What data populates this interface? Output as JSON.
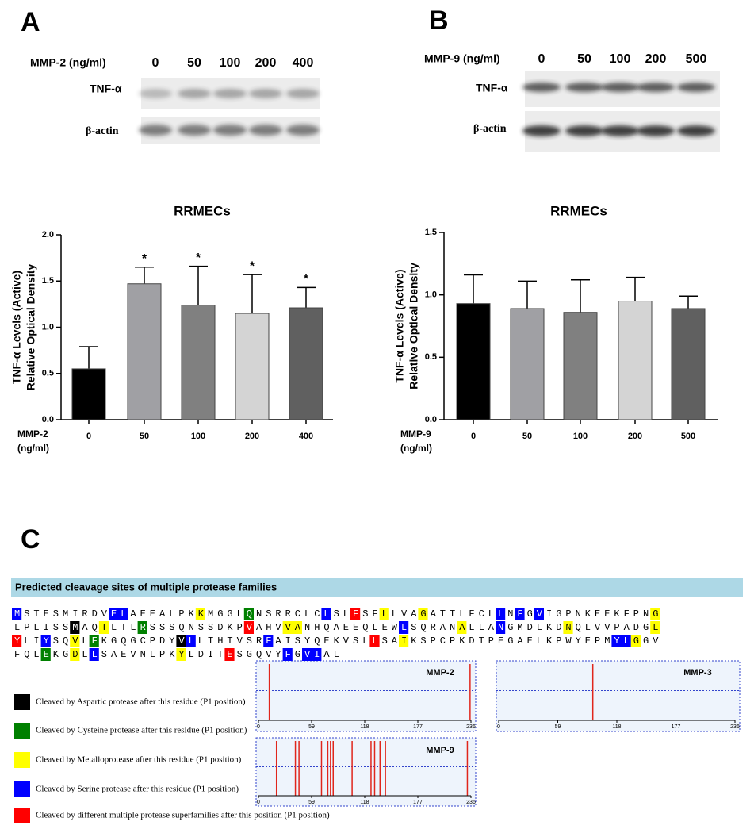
{
  "panels": {
    "a": "A",
    "b": "B",
    "c": "C"
  },
  "blots": [
    {
      "treatment": "MMP-2 (ng/ml)",
      "lanes": [
        "0",
        "50",
        "100",
        "200",
        "400"
      ],
      "rows": [
        "TNF-α",
        "β-actin"
      ]
    },
    {
      "treatment": "MMP-9 (ng/ml)",
      "lanes": [
        "0",
        "50",
        "100",
        "200",
        "500"
      ],
      "rows": [
        "TNF-α",
        "β-actin"
      ]
    }
  ],
  "chart_data": [
    {
      "type": "bar",
      "title": "RRMECs",
      "y_label": [
        "TNF-α Levels (Active)",
        "Relative Optical Density"
      ],
      "x_label": [
        "MMP-2",
        "(ng/ml)"
      ],
      "categories": [
        "0",
        "50",
        "100",
        "200",
        "400"
      ],
      "values": [
        0.55,
        1.47,
        1.24,
        1.15,
        1.21
      ],
      "errors": [
        0.24,
        0.18,
        0.42,
        0.42,
        0.22
      ],
      "significance": [
        null,
        "*",
        "*",
        "*",
        "*"
      ],
      "colors": [
        "#000000",
        "#a0a0a4",
        "#808080",
        "#d4d4d4",
        "#606060"
      ],
      "ylim": [
        0,
        2
      ],
      "yticks": [
        {
          "value": 0,
          "label": "0.0"
        },
        {
          "value": 0.5,
          "label": "0.5"
        },
        {
          "value": 1,
          "label": "1.0"
        },
        {
          "value": 1.5,
          "label": "1.5"
        },
        {
          "value": 2,
          "label": "2.0"
        }
      ]
    },
    {
      "type": "bar",
      "title": "RRMECs",
      "y_label": [
        "TNF-α Levels (Active)",
        "Relative Optical Density"
      ],
      "x_label": [
        "MMP-9",
        "(ng/ml)"
      ],
      "categories": [
        "0",
        "50",
        "100",
        "200",
        "500"
      ],
      "values": [
        0.93,
        0.89,
        0.86,
        0.95,
        0.89
      ],
      "errors": [
        0.23,
        0.22,
        0.26,
        0.19,
        0.1
      ],
      "colors": [
        "#000000",
        "#a0a0a4",
        "#808080",
        "#d4d4d4",
        "#606060"
      ],
      "ylim": [
        0,
        1.5
      ],
      "yticks": [
        {
          "value": 0,
          "label": "0.0"
        },
        {
          "value": 0.5,
          "label": "0.5"
        },
        {
          "value": 1,
          "label": "1.0"
        },
        {
          "value": 1.5,
          "label": "1.5"
        }
      ]
    },
    {
      "type": "rug",
      "title": "MMP-2",
      "x": [
        12,
        235
      ],
      "xlim": [
        0,
        236
      ],
      "xticks": [
        0,
        59,
        118,
        177,
        236
      ],
      "color": "#e0261c"
    },
    {
      "type": "rug",
      "title": "MMP-3",
      "x": [
        94
      ],
      "xlim": [
        0,
        236
      ],
      "xticks": [
        0,
        59,
        118,
        177,
        236
      ],
      "color": "#e0261c"
    },
    {
      "type": "rug",
      "title": "MMP-9",
      "x": [
        20,
        41,
        45,
        70,
        77,
        80,
        83,
        104,
        125,
        129,
        135,
        141,
        232
      ],
      "xlim": [
        0,
        236
      ],
      "xticks": [
        0,
        59,
        118,
        177,
        236
      ],
      "color": "#e0261c"
    }
  ],
  "cleavage": {
    "header": "Predicted cleavage sites of multiple protease families",
    "sequence": [
      [
        {
          "text": "M",
          "color": "#0000ff"
        },
        {
          "text": "STESMIRDV"
        },
        {
          "text": "EL",
          "color": "#0000ff"
        },
        {
          "text": "AEEALPK"
        },
        {
          "text": "K",
          "color": "#ffff00"
        },
        {
          "text": "MGGL"
        },
        {
          "text": "Q",
          "color": "#008000"
        },
        {
          "text": "NSRRCLC"
        },
        {
          "text": "L",
          "color": "#0000ff"
        },
        {
          "text": "SL"
        },
        {
          "text": "F",
          "color": "#ff0000"
        },
        {
          "text": "SF"
        },
        {
          "text": "L",
          "color": "#ffff00"
        },
        {
          "text": "LVA"
        },
        {
          "text": "G",
          "color": "#ffff00"
        },
        {
          "text": "ATTLFCL"
        },
        {
          "text": "L",
          "color": "#0000ff"
        },
        {
          "text": "N"
        },
        {
          "text": "F",
          "color": "#0000ff"
        },
        {
          "text": "G"
        },
        {
          "text": "V",
          "color": "#0000ff"
        },
        {
          "text": "IGPNKEEKFPN"
        },
        {
          "text": "G",
          "color": "#ffff00"
        }
      ],
      [
        {
          "text": "LPLISS"
        },
        {
          "text": "M",
          "color": "#000000"
        },
        {
          "text": "AQ"
        },
        {
          "text": "T",
          "color": "#ffff00"
        },
        {
          "text": "LTL"
        },
        {
          "text": "R",
          "color": "#008000"
        },
        {
          "text": "SSSQNSSDKP"
        },
        {
          "text": "V",
          "color": "#ff0000"
        },
        {
          "text": "AHV"
        },
        {
          "text": "VA",
          "color": "#ffff00"
        },
        {
          "text": "NHQAEEQLEW"
        },
        {
          "text": "L",
          "color": "#0000ff"
        },
        {
          "text": "SQRAN"
        },
        {
          "text": "A",
          "color": "#ffff00"
        },
        {
          "text": "LLA"
        },
        {
          "text": "N",
          "color": "#0000ff"
        },
        {
          "text": "GMDLKD"
        },
        {
          "text": "N",
          "color": "#ffff00"
        },
        {
          "text": "QLVVPADG"
        },
        {
          "text": "L",
          "color": "#ffff00"
        }
      ],
      [
        {
          "text": "Y",
          "color": "#ff0000"
        },
        {
          "text": "LI"
        },
        {
          "text": "Y",
          "color": "#0000ff"
        },
        {
          "text": "SQ"
        },
        {
          "text": "V",
          "color": "#ffff00"
        },
        {
          "text": "L"
        },
        {
          "text": "F",
          "color": "#008000"
        },
        {
          "text": "KGQGCPDY"
        },
        {
          "text": "V",
          "color": "#000000"
        },
        {
          "text": "L",
          "color": "#0000ff"
        },
        {
          "text": "LTHTVSR"
        },
        {
          "text": "F",
          "color": "#0000ff"
        },
        {
          "text": "AISYQEKVSL"
        },
        {
          "text": "L",
          "color": "#ff0000"
        },
        {
          "text": "SA"
        },
        {
          "text": "I",
          "color": "#ffff00"
        },
        {
          "text": "KSPCPKDTPEGAELKPWYEPM"
        },
        {
          "text": "YL",
          "color": "#0000ff"
        },
        {
          "text": "G",
          "color": "#ffff00"
        },
        {
          "text": "GV"
        }
      ],
      [
        {
          "text": "FQL"
        },
        {
          "text": "E",
          "color": "#008000"
        },
        {
          "text": "KG"
        },
        {
          "text": "D",
          "color": "#ffff00"
        },
        {
          "text": "L"
        },
        {
          "text": "L",
          "color": "#0000ff"
        },
        {
          "text": "SAEVNLPK"
        },
        {
          "text": "Y",
          "color": "#ffff00"
        },
        {
          "text": "LDIT"
        },
        {
          "text": "E",
          "color": "#ff0000"
        },
        {
          "text": "SGQVY"
        },
        {
          "text": "F",
          "color": "#0000ff"
        },
        {
          "text": "G"
        },
        {
          "text": "VI",
          "color": "#0000ff"
        },
        {
          "text": "AL"
        }
      ]
    ],
    "legend": [
      {
        "color": "#000000",
        "label": "Cleaved by Aspartic protease after this residue (P1 position)"
      },
      {
        "color": "#008000",
        "label": "Cleaved by Cysteine protease after this residue (P1 position)"
      },
      {
        "color": "#ffff00",
        "label": "Cleaved by Metalloprotease after this residue (P1 position)"
      },
      {
        "color": "#0000ff",
        "label": "Cleaved by Serine protease after this residue (P1 position)"
      },
      {
        "color": "#ff0000",
        "label": "Cleaved by different multiple protease superfamilies after this position (P1 position)"
      }
    ]
  }
}
